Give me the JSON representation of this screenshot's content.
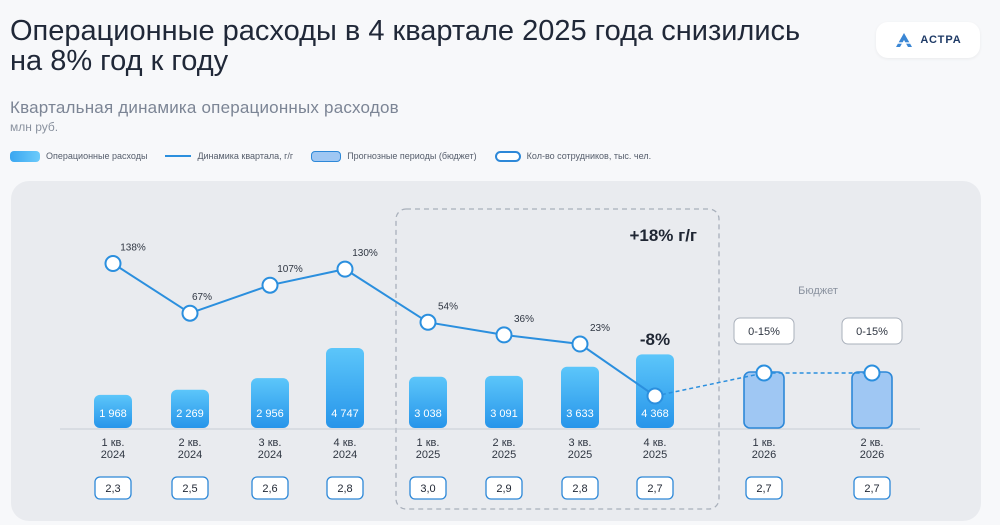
{
  "header": {
    "title": "Операционные расходы в 4 квартале 2025 года снизились на 8% год к году",
    "logo_text": "АСТРА",
    "subtitle": "Квартальная динамика операционных расходов",
    "units": "млн руб."
  },
  "legend": [
    {
      "label": "Операционные расходы",
      "swatch": "bar"
    },
    {
      "label": "Динамика квартала, г/г",
      "swatch": "line"
    },
    {
      "label": "Прогнозные периоды (бюджет)",
      "swatch": "forecast"
    },
    {
      "label": "Кол-во сотрудников, тыс. чел.",
      "swatch": "pill"
    }
  ],
  "chart_data": {
    "type": "bar",
    "categories": [
      [
        "1 кв.",
        "2024"
      ],
      [
        "2 кв.",
        "2024"
      ],
      [
        "3 кв.",
        "2024"
      ],
      [
        "4 кв.",
        "2024"
      ],
      [
        "1 кв.",
        "2025"
      ],
      [
        "2 кв.",
        "2025"
      ],
      [
        "3 кв.",
        "2025"
      ],
      [
        "4 кв.",
        "2025"
      ],
      [
        "1 кв.",
        "2026"
      ],
      [
        "2 кв.",
        "2026"
      ]
    ],
    "opex": [
      1968,
      2269,
      2956,
      4747,
      3038,
      3091,
      3633,
      4368,
      null,
      null
    ],
    "opex_labels": [
      "1 968",
      "2 269",
      "2 956",
      "4 747",
      "3 038",
      "3 091",
      "3 633",
      "4 368",
      "",
      ""
    ],
    "yoy_growth_pct": [
      138,
      67,
      107,
      130,
      54,
      36,
      23,
      -8
    ],
    "yoy_labels": [
      "138%",
      "67%",
      "107%",
      "130%",
      "54%",
      "36%",
      "23%",
      "-8%"
    ],
    "forecast_labels": [
      "0-15%",
      "0-15%"
    ],
    "budget_label": "Бюджет",
    "headcount": [
      "2,3",
      "2,5",
      "2,6",
      "2,8",
      "3,0",
      "2,9",
      "2,8",
      "2,7",
      "2,7",
      "2,7"
    ],
    "highlight_label": "+18% г/г",
    "colors": {
      "bar_top": "#5cc6fa",
      "bar_bottom": "#2795ea",
      "line": "#2b8fde",
      "forecast_fill": "#9fc7f3",
      "forecast_stroke": "#2d88d8",
      "panel": "#e9ebef"
    }
  }
}
